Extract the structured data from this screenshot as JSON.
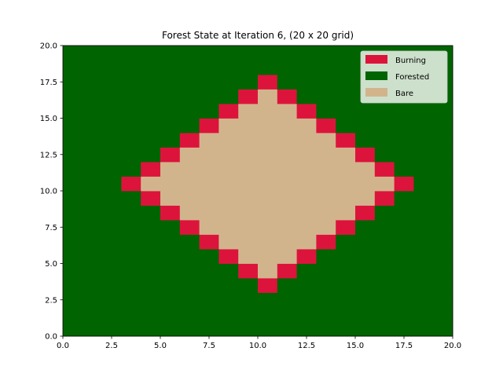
{
  "chart_data": {
    "type": "heatmap",
    "title": "Forest State at Iteration 6, (20 x 20 grid)",
    "xlabel": "",
    "ylabel": "",
    "xlim": [
      0,
      20
    ],
    "ylim": [
      0,
      20
    ],
    "x_ticks": [
      "0.0",
      "2.5",
      "5.0",
      "7.5",
      "10.0",
      "12.5",
      "15.0",
      "17.5",
      "20.0"
    ],
    "y_ticks": [
      "0.0",
      "2.5",
      "5.0",
      "7.5",
      "10.0",
      "12.5",
      "15.0",
      "17.5",
      "20.0"
    ],
    "grid_size": 20,
    "default_state": "Forested",
    "fire_center": [
      10,
      10
    ],
    "burning_distance": 7,
    "rule": "cells with |col-10|+|row-10| = 7 are Burning, < 7 are Bare, otherwise Forested; rows counted from bottom",
    "legend": {
      "placement": "upper-right",
      "entries": [
        {
          "label": "Burning",
          "color": "#dc143c"
        },
        {
          "label": "Forested",
          "color": "#006400"
        },
        {
          "label": "Bare",
          "color": "#d2b48c"
        }
      ]
    },
    "colors": {
      "Burning": "#dc143c",
      "Forested": "#006400",
      "Bare": "#d2b48c"
    }
  }
}
